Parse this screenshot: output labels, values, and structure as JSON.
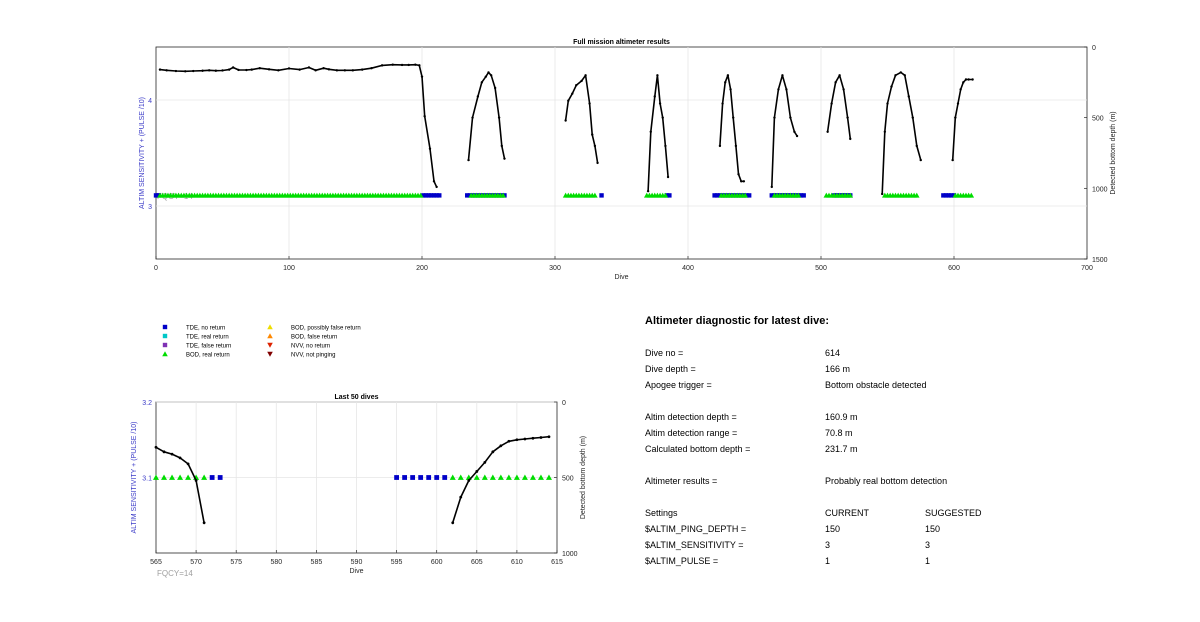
{
  "figure": {
    "chart_data": [
      {
        "type": "scatter",
        "title": "Full mission altimeter results",
        "xlabel": "Dive",
        "ylabel_left": "ALTIM SENSITIVITY + (PULSE /10)",
        "ylabel_right": "Detected bottom depth (m)",
        "xlim": [
          0,
          700
        ],
        "ylim_left": [
          2.5,
          4.5
        ],
        "ylim_right_reversed": [
          0,
          1500
        ],
        "xticks": [
          "0",
          "100",
          "200",
          "300",
          "400",
          "500",
          "600",
          "700"
        ],
        "yticks_left": [
          "3",
          "4"
        ],
        "yticks_right": [
          "0",
          "500",
          "1000",
          "1500"
        ],
        "grid": true,
        "annotation": "FQCY=14",
        "bod_real_return_y": 3.1,
        "bod_real_return_ranges": [
          [
            3,
            200
          ],
          [
            237,
            262
          ],
          [
            308,
            330
          ],
          [
            369,
            383
          ],
          [
            425,
            443
          ],
          [
            465,
            483
          ],
          [
            504,
            522
          ],
          [
            548,
            573
          ],
          [
            601,
            614
          ]
        ],
        "tde_no_return_y": 3.1,
        "tde_no_return_ranges": [
          [
            0,
            2
          ],
          [
            201,
            214
          ],
          [
            234,
            262
          ],
          [
            335,
            336
          ],
          [
            384,
            386
          ],
          [
            420,
            446
          ],
          [
            463,
            488
          ],
          [
            510,
            522
          ],
          [
            592,
            601
          ]
        ],
        "depth_series_x": [
          3,
          8,
          15,
          22,
          28,
          35,
          40,
          45,
          50,
          55,
          58,
          62,
          68,
          72,
          78,
          85,
          92,
          100,
          108,
          115,
          120,
          126,
          130,
          136,
          142,
          148,
          155,
          162,
          170,
          178,
          185,
          190,
          195,
          198,
          200,
          202,
          206,
          209,
          211,
          235,
          238,
          242,
          245,
          248,
          250,
          252,
          255,
          258,
          260,
          262,
          308,
          310,
          313,
          316,
          320,
          323,
          326,
          328,
          330,
          332,
          370,
          372,
          375,
          377,
          379,
          381,
          383,
          385,
          424,
          426,
          428,
          430,
          432,
          434,
          436,
          438,
          440,
          442,
          463,
          465,
          468,
          471,
          474,
          477,
          480,
          482,
          505,
          508,
          511,
          514,
          517,
          520,
          522,
          546,
          548,
          550,
          553,
          556,
          560,
          563,
          566,
          569,
          572,
          575,
          599,
          601,
          603,
          605,
          607,
          609,
          611,
          614
        ],
        "depth_series_m": [
          160,
          165,
          170,
          172,
          170,
          168,
          165,
          168,
          166,
          160,
          145,
          162,
          163,
          160,
          150,
          158,
          165,
          152,
          160,
          145,
          165,
          150,
          158,
          165,
          165,
          165,
          160,
          150,
          130,
          125,
          127,
          127,
          125,
          130,
          210,
          490,
          720,
          950,
          990,
          800,
          500,
          350,
          250,
          210,
          180,
          200,
          290,
          500,
          700,
          790,
          520,
          380,
          330,
          270,
          240,
          200,
          400,
          620,
          700,
          820,
          1020,
          600,
          350,
          200,
          400,
          500,
          700,
          920,
          700,
          400,
          250,
          200,
          300,
          500,
          700,
          900,
          950,
          950,
          990,
          500,
          300,
          200,
          300,
          500,
          600,
          630,
          600,
          400,
          250,
          200,
          300,
          500,
          650,
          1040,
          600,
          400,
          280,
          200,
          180,
          200,
          350,
          500,
          700,
          800,
          800,
          500,
          400,
          300,
          250,
          230,
          230,
          230
        ]
      },
      {
        "type": "scatter",
        "title": "Last 50 dives",
        "xlabel": "Dive",
        "ylabel_left": "ALTIM SENSITIVITY + (PULSE /10)",
        "ylabel_right": "Detected bottom depth (m)",
        "xlim": [
          565,
          615
        ],
        "ylim_left": [
          3.0,
          3.2
        ],
        "ylim_right_reversed": [
          0,
          1000
        ],
        "xticks": [
          "565",
          "570",
          "575",
          "580",
          "585",
          "590",
          "595",
          "600",
          "605",
          "610",
          "615"
        ],
        "yticks_left": [
          "3.1",
          "3.2"
        ],
        "yticks_right": [
          "0",
          "500",
          "1000"
        ],
        "grid": true,
        "annotation": "FQCY=14",
        "bod_real_return_y": 3.1,
        "bod_real_return_x": [
          565,
          566,
          567,
          568,
          569,
          570,
          571,
          602,
          603,
          604,
          605,
          606,
          607,
          608,
          609,
          610,
          611,
          612,
          613,
          614
        ],
        "tde_no_return_y": 3.1,
        "tde_no_return_x": [
          572,
          573,
          595,
          596,
          597,
          598,
          599,
          600,
          601
        ],
        "depth_series_x": [
          565,
          566,
          567,
          568,
          569,
          570,
          571,
          602,
          603,
          604,
          605,
          606,
          607,
          608,
          609,
          610,
          611,
          612,
          613,
          614
        ],
        "depth_series_m": [
          300,
          330,
          345,
          370,
          410,
          520,
          800,
          800,
          630,
          520,
          460,
          400,
          330,
          290,
          260,
          250,
          245,
          240,
          235,
          230
        ]
      }
    ],
    "legend": {
      "items": [
        {
          "label": "TDE, no return",
          "marker": "square",
          "color": "#0000c8"
        },
        {
          "label": "TDE, real return",
          "marker": "square",
          "color": "#00c8c8"
        },
        {
          "label": "TDE, false return",
          "marker": "square",
          "color": "#7f32b4"
        },
        {
          "label": "BOD, real return",
          "marker": "triangle-up",
          "color": "#00dd00"
        },
        {
          "label": "BOD, possibly false return",
          "marker": "triangle-up",
          "color": "#eedd00"
        },
        {
          "label": "BOD, false return",
          "marker": "triangle-up",
          "color": "#ff8800"
        },
        {
          "label": "NVV, no return",
          "marker": "triangle-down",
          "color": "#dd2200"
        },
        {
          "label": "NVV, not pinging",
          "marker": "triangle-down",
          "color": "#800000"
        }
      ]
    }
  },
  "diagnostic": {
    "title": "Altimeter diagnostic for latest dive:",
    "dive_no_label": "Dive no =",
    "dive_no_value": "614",
    "dive_depth_label": "Dive depth =",
    "dive_depth_value": "166 m",
    "apogee_label": "Apogee trigger =",
    "apogee_value": "Bottom obstacle detected",
    "altim_depth_label": "Altim detection depth =",
    "altim_depth_value": "160.9 m",
    "altim_range_label": "Altim detection range =",
    "altim_range_value": "70.8 m",
    "calc_bottom_label": "Calculated bottom depth =",
    "calc_bottom_value": "231.7 m",
    "results_label": "Altimeter results =",
    "results_value": "Probably real bottom detection",
    "settings_label": "Settings",
    "current_label": "CURRENT",
    "suggested_label": "SUGGESTED",
    "settings": [
      {
        "name": "$ALTIM_PING_DEPTH =",
        "current": "150",
        "suggested": "150"
      },
      {
        "name": "$ALTIM_SENSITIVITY =",
        "current": "3",
        "suggested": "3"
      },
      {
        "name": "$ALTIM_PULSE =",
        "current": "1",
        "suggested": "1"
      }
    ]
  },
  "colors": {
    "axis_left_text": "#3c3cc8",
    "fqcy_text": "#a0a0a0",
    "bod_green": "#00dd00",
    "tde_blue": "#0000c8",
    "line": "#000000",
    "grid": "#e6e6e6"
  }
}
